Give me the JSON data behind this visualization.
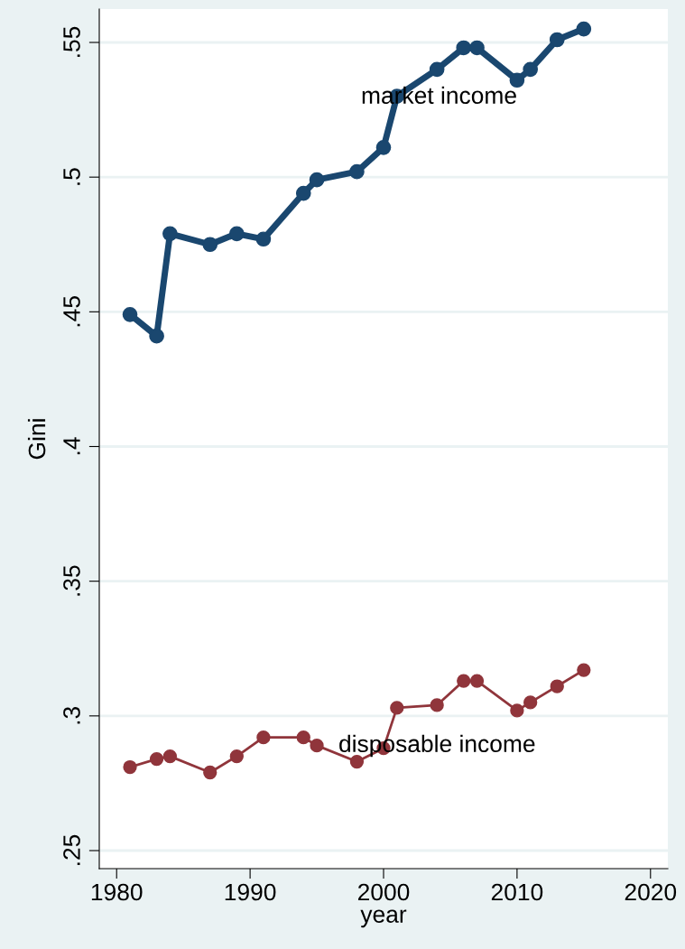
{
  "chart_data": {
    "type": "line",
    "xlabel": "year",
    "ylabel": "Gini",
    "x": [
      1981,
      1983,
      1984,
      1987,
      1989,
      1991,
      1994,
      1995,
      1998,
      2000,
      2001,
      2004,
      2006,
      2007,
      2010,
      2011,
      2013,
      2015
    ],
    "series": [
      {
        "name": "market income",
        "color": "#1a476f",
        "values": [
          0.449,
          0.441,
          0.479,
          0.475,
          0.479,
          0.477,
          0.494,
          0.499,
          0.502,
          0.511,
          0.53,
          0.54,
          0.548,
          0.548,
          0.536,
          0.54,
          0.551,
          0.555
        ]
      },
      {
        "name": "disposable income",
        "color": "#90353b",
        "values": [
          0.281,
          0.284,
          0.285,
          0.279,
          0.285,
          0.292,
          0.292,
          0.289,
          0.283,
          0.288,
          0.303,
          0.304,
          0.313,
          0.313,
          0.302,
          0.305,
          0.311,
          0.317
        ]
      }
    ],
    "xlim": [
      1978.7,
      2021.3
    ],
    "ylim": [
      0.2433,
      0.5624
    ],
    "xticks": [
      1980,
      1990,
      2000,
      2010,
      2020
    ],
    "yticks": [
      {
        "value": 0.25,
        "label": ".25"
      },
      {
        "value": 0.3,
        "label": ".3"
      },
      {
        "value": 0.35,
        "label": ".35"
      },
      {
        "value": 0.4,
        "label": ".4"
      },
      {
        "value": 0.45,
        "label": ".45"
      },
      {
        "value": 0.5,
        "label": ".5"
      },
      {
        "value": 0.55,
        "label": ".55"
      }
    ],
    "grid": "y",
    "marker": "circle",
    "line_style": "solid",
    "legend": false
  }
}
